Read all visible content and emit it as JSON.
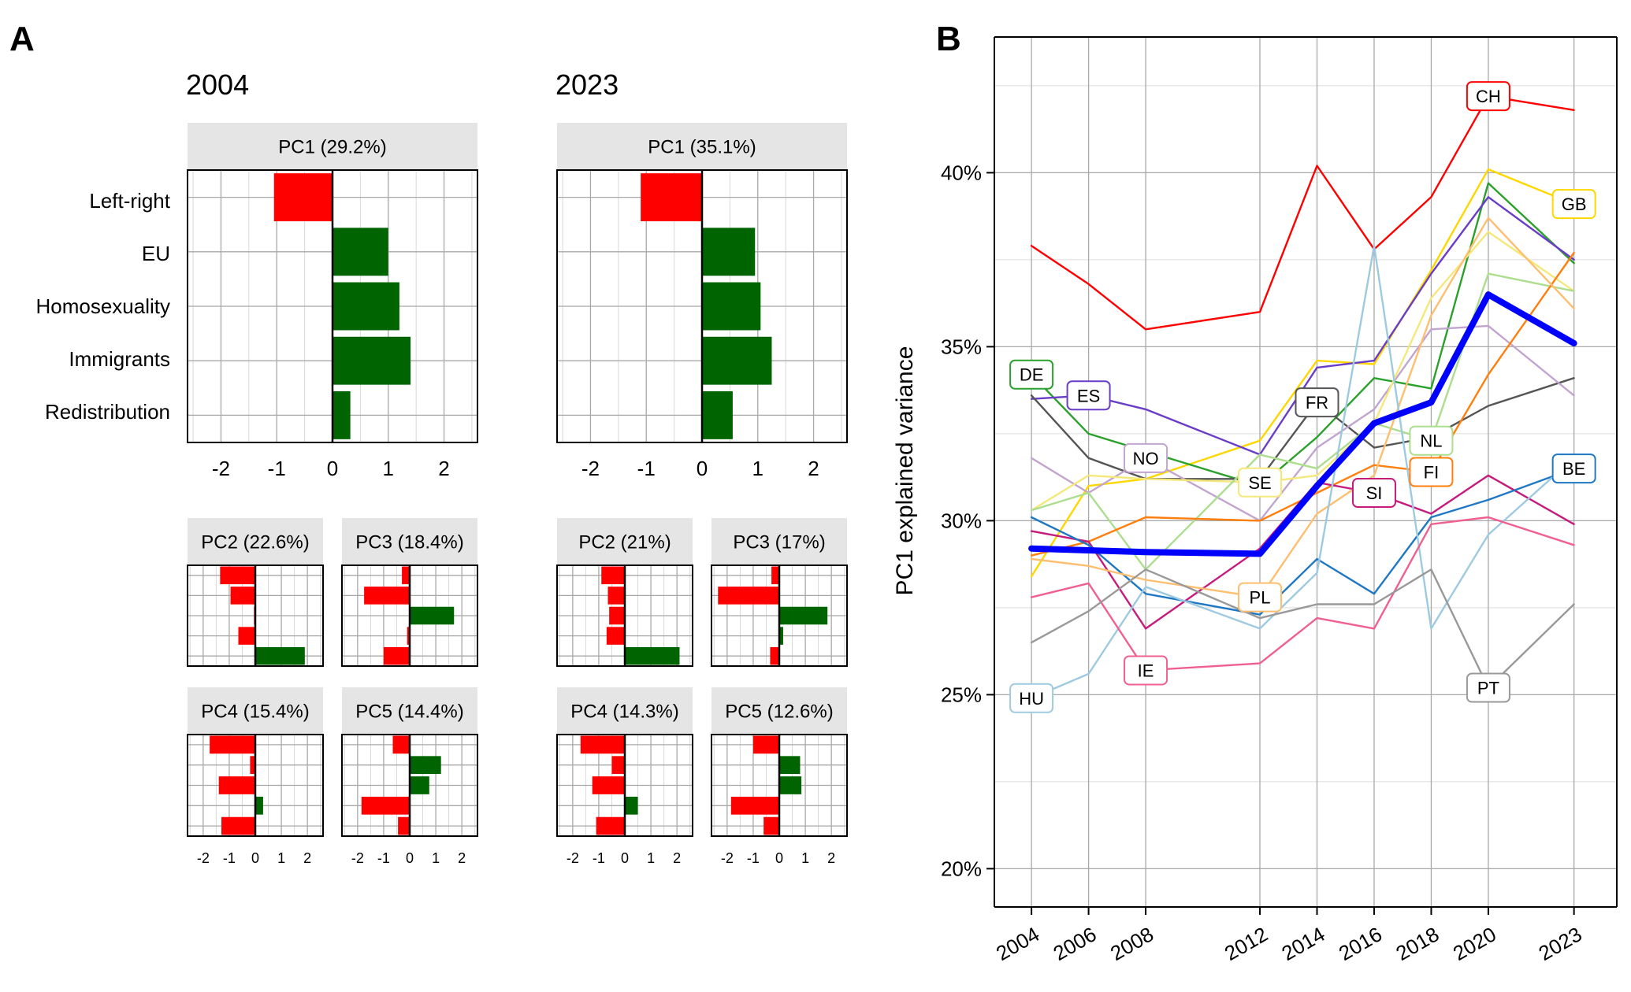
{
  "panel_a": {
    "letter": "A",
    "years": [
      "2004",
      "2023"
    ],
    "variables": [
      "Left-right",
      "EU",
      "Homosexuality",
      "Immigrants",
      "Redistribution"
    ],
    "tick_labels": [
      "-2",
      "-1",
      "0",
      "1",
      "2"
    ]
  },
  "panel_b": {
    "letter": "B",
    "ylabel": "PC1 explained variance",
    "y_ticks": [
      "20%",
      "25%",
      "30%",
      "35%",
      "40%"
    ],
    "x_ticks": [
      "2004",
      "2006",
      "2008",
      "2012",
      "2014",
      "2016",
      "2018",
      "2020",
      "2023"
    ]
  },
  "colors": {
    "negative": "#ff0000",
    "positive": "#006400",
    "average": "#0000ff",
    "strip": "#e5e5e5"
  },
  "chart_data": [
    {
      "type": "bar",
      "orientation": "horizontal",
      "year": "2004",
      "title": "PC1 (29.2%)",
      "categories": [
        "Left-right",
        "EU",
        "Homosexuality",
        "Immigrants",
        "Redistribution"
      ],
      "values": [
        -1.05,
        1.0,
        1.2,
        1.4,
        0.32
      ],
      "xlim": [
        -2.6,
        2.6
      ]
    },
    {
      "type": "bar",
      "orientation": "horizontal",
      "year": "2023",
      "title": "PC1 (35.1%)",
      "categories": [
        "Left-right",
        "EU",
        "Homosexuality",
        "Immigrants",
        "Redistribution"
      ],
      "values": [
        -1.1,
        0.95,
        1.05,
        1.25,
        0.55
      ],
      "xlim": [
        -2.6,
        2.6
      ]
    },
    {
      "type": "bar",
      "orientation": "horizontal",
      "year": "2004",
      "title": "PC2 (22.6%)",
      "categories": [
        "Left-right",
        "EU",
        "Homosexuality",
        "Immigrants",
        "Redistribution"
      ],
      "values": [
        -1.35,
        -0.95,
        -0.05,
        -0.65,
        1.9
      ],
      "xlim": [
        -2.6,
        2.6
      ]
    },
    {
      "type": "bar",
      "orientation": "horizontal",
      "year": "2004",
      "title": "PC3 (18.4%)",
      "categories": [
        "Left-right",
        "EU",
        "Homosexuality",
        "Immigrants",
        "Redistribution"
      ],
      "values": [
        -0.3,
        -1.75,
        1.7,
        -0.1,
        -1.0
      ],
      "xlim": [
        -2.6,
        2.6
      ]
    },
    {
      "type": "bar",
      "orientation": "horizontal",
      "year": "2004",
      "title": "PC4 (15.4%)",
      "categories": [
        "Left-right",
        "EU",
        "Homosexuality",
        "Immigrants",
        "Redistribution"
      ],
      "values": [
        -1.75,
        -0.2,
        -1.4,
        0.3,
        -1.3
      ],
      "xlim": [
        -2.6,
        2.6
      ]
    },
    {
      "type": "bar",
      "orientation": "horizontal",
      "year": "2004",
      "title": "PC5 (14.4%)",
      "categories": [
        "Left-right",
        "EU",
        "Homosexuality",
        "Immigrants",
        "Redistribution"
      ],
      "values": [
        -0.65,
        1.2,
        0.75,
        -1.85,
        -0.45
      ],
      "xlim": [
        -2.6,
        2.6
      ]
    },
    {
      "type": "bar",
      "orientation": "horizontal",
      "year": "2023",
      "title": "PC2 (21%)",
      "categories": [
        "Left-right",
        "EU",
        "Homosexuality",
        "Immigrants",
        "Redistribution"
      ],
      "values": [
        -0.9,
        -0.65,
        -0.6,
        -0.7,
        2.1
      ],
      "xlim": [
        -2.6,
        2.6
      ]
    },
    {
      "type": "bar",
      "orientation": "horizontal",
      "year": "2023",
      "title": "PC3 (17%)",
      "categories": [
        "Left-right",
        "EU",
        "Homosexuality",
        "Immigrants",
        "Redistribution"
      ],
      "values": [
        -0.3,
        -2.35,
        1.85,
        0.15,
        -0.35
      ],
      "xlim": [
        -2.6,
        2.6
      ]
    },
    {
      "type": "bar",
      "orientation": "horizontal",
      "year": "2023",
      "title": "PC4 (14.3%)",
      "categories": [
        "Left-right",
        "EU",
        "Homosexuality",
        "Immigrants",
        "Redistribution"
      ],
      "values": [
        -1.7,
        -0.5,
        -1.25,
        0.5,
        -1.1
      ],
      "xlim": [
        -2.6,
        2.6
      ]
    },
    {
      "type": "bar",
      "orientation": "horizontal",
      "year": "2023",
      "title": "PC5 (12.6%)",
      "categories": [
        "Left-right",
        "EU",
        "Homosexuality",
        "Immigrants",
        "Redistribution"
      ],
      "values": [
        -1.0,
        0.8,
        0.85,
        -1.85,
        -0.6
      ],
      "xlim": [
        -2.6,
        2.6
      ]
    },
    {
      "type": "line",
      "x": [
        2004,
        2006,
        2008,
        2012,
        2014,
        2016,
        2018,
        2020,
        2023
      ],
      "ylabel": "PC1 explained variance",
      "ylim": [
        18.9,
        43.9
      ],
      "y_unit": "%",
      "grid": true,
      "series": [
        {
          "name": "CH",
          "color": "#ff0000",
          "values": [
            37.9,
            36.8,
            35.5,
            36.0,
            40.2,
            37.8,
            39.3,
            42.2,
            41.8
          ],
          "label_x": 2020
        },
        {
          "name": "GB",
          "color": "#ffd700",
          "values": [
            28.4,
            31.0,
            31.2,
            32.3,
            34.6,
            34.5,
            37.2,
            40.1,
            39.1
          ],
          "label_x": 2023
        },
        {
          "name": "DE",
          "color": "#2ca02c",
          "values": [
            34.2,
            32.5,
            32.0,
            31.0,
            32.4,
            34.1,
            33.8,
            39.7,
            37.4
          ],
          "label_x": 2004
        },
        {
          "name": "ES",
          "color": "#6a3dc8",
          "values": [
            33.5,
            33.6,
            33.2,
            31.9,
            34.4,
            34.6,
            37.1,
            39.3,
            37.5
          ],
          "label_x": 2006
        },
        {
          "name": "FR",
          "color": "#555555",
          "values": [
            33.6,
            31.8,
            31.2,
            31.2,
            33.4,
            32.1,
            32.4,
            33.3,
            34.1
          ],
          "label_x": 2014
        },
        {
          "name": "NO",
          "color": "#c2a5cf",
          "values": [
            31.8,
            30.8,
            31.8,
            30.0,
            32.1,
            33.2,
            35.5,
            35.6,
            33.6
          ],
          "label_x": 2008
        },
        {
          "name": "SE",
          "color": "#f5e87a",
          "values": [
            30.3,
            31.3,
            31.2,
            31.1,
            31.3,
            32.8,
            36.4,
            38.3,
            36.6
          ],
          "label_x": 2012
        },
        {
          "name": "NL",
          "color": "#addd8e",
          "values": [
            30.3,
            30.8,
            28.6,
            31.9,
            31.5,
            32.8,
            32.3,
            37.1,
            36.6
          ],
          "label_x": 2018
        },
        {
          "name": "FI",
          "color": "#ff7f0e",
          "values": [
            29.0,
            29.4,
            30.1,
            30.0,
            30.8,
            31.6,
            31.4,
            34.2,
            37.7
          ],
          "label_x": 2018
        },
        {
          "name": "SI",
          "color": "#c51b7d",
          "values": [
            29.7,
            29.4,
            26.9,
            29.2,
            31.1,
            30.8,
            30.2,
            31.3,
            29.9
          ],
          "label_x": 2016
        },
        {
          "name": "BE",
          "color": "#1f78c4",
          "values": [
            30.1,
            29.3,
            27.9,
            27.3,
            28.9,
            27.9,
            30.1,
            30.6,
            31.5
          ],
          "label_x": 2023
        },
        {
          "name": "PL",
          "color": "#fdbf6f",
          "values": [
            28.9,
            28.7,
            28.3,
            27.8,
            30.2,
            31.3,
            35.9,
            38.7,
            36.1
          ],
          "label_x": 2012
        },
        {
          "name": "HU",
          "color": "#9ecae1",
          "values": [
            24.9,
            25.6,
            28.1,
            26.9,
            28.5,
            37.9,
            26.9,
            29.6,
            31.8
          ],
          "label_x": 2004
        },
        {
          "name": "IE",
          "color": "#f0608f",
          "values": [
            27.8,
            28.2,
            25.7,
            25.9,
            27.2,
            26.9,
            29.9,
            30.1,
            29.3
          ],
          "label_x": 2008
        },
        {
          "name": "PT",
          "color": "#999999",
          "values": [
            26.5,
            27.4,
            28.6,
            27.2,
            27.6,
            27.6,
            28.6,
            25.2,
            27.6
          ],
          "label_x": 2020
        },
        {
          "color": "#0000ff",
          "values": [
            29.2,
            29.15,
            29.1,
            29.05,
            31.0,
            32.8,
            33.4,
            36.5,
            35.1
          ],
          "thick": true
        }
      ]
    }
  ]
}
